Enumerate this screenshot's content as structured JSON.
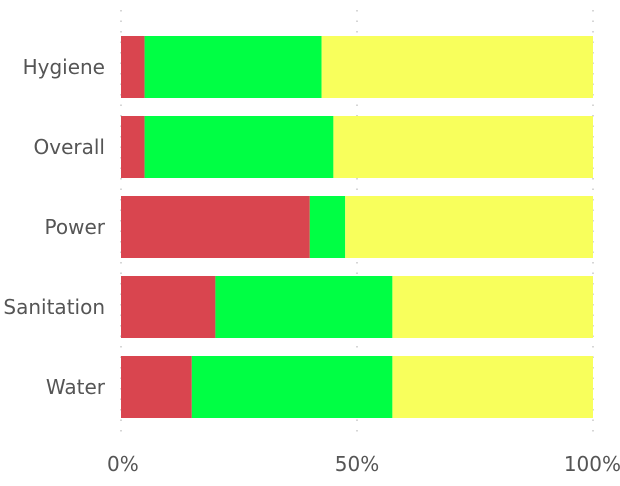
{
  "chart_data": {
    "type": "bar",
    "orientation": "horizontal",
    "stacked": "percent",
    "categories": [
      "Hygiene",
      "Overall",
      "Power",
      "Sanitation",
      "Water"
    ],
    "series": [
      {
        "color": "#d9454f",
        "values": [
          5,
          5,
          40,
          20,
          15
        ]
      },
      {
        "color": "#00ff44",
        "values": [
          37.5,
          40,
          7.5,
          37.5,
          42.5
        ]
      },
      {
        "color": "#f8ff5c",
        "values": [
          57.5,
          55,
          52.5,
          42.5,
          42.5
        ]
      }
    ],
    "xlim": [
      0,
      100
    ],
    "xticks": [
      0,
      50,
      100
    ],
    "xtick_labels": [
      "0%",
      "50%",
      "100%"
    ],
    "grid": "vertical dotted",
    "legend": "none"
  }
}
